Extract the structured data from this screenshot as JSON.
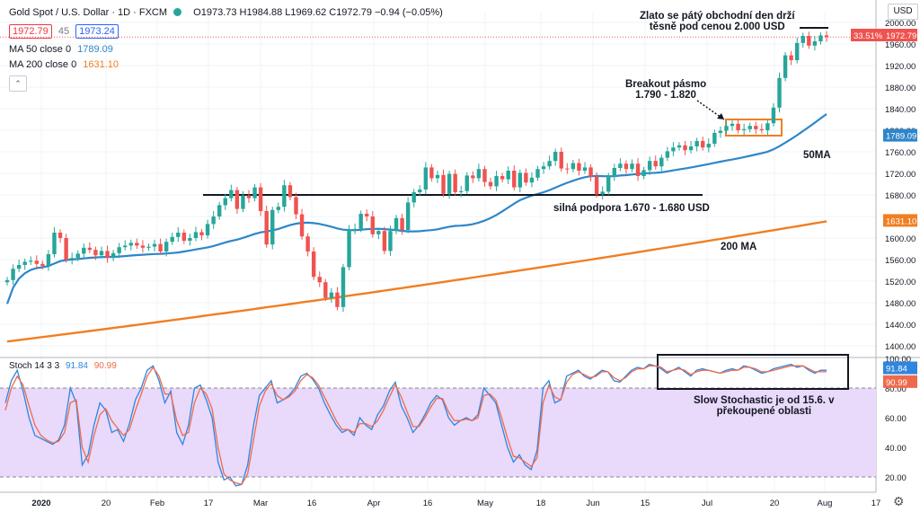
{
  "header": {
    "symbol": "Gold Spot / U.S. Dollar · 1D · FXCM",
    "ohlc": "O1973.73 H1984.88 L1969.62 C1972.79 −0.94 (−0.05%)",
    "sell": "1972.79",
    "spread": "45",
    "buy": "1973.24",
    "ma50_label": "MA 50 close 0",
    "ma50_value": "1789.09",
    "ma200_label": "MA 200 close 0",
    "ma200_value": "1631.10",
    "stoch_label": "Stoch 14 3 3",
    "stoch_k": "91.84",
    "stoch_d": "90.99",
    "currency": "USD"
  },
  "annotations": {
    "top1": "Zlato se pátý obchodní den drží",
    "top2": "těsně pod cenou 2.000 USD",
    "breakout1": "Breakout pásmo",
    "breakout2": "1.790 - 1.820",
    "support": "silná podpora 1.670 - 1.680 USD",
    "ma50": "50MA",
    "ma200": "200 MA",
    "stoch1": "Slow Stochastic je od 15.6. v",
    "stoch2": "překoupené oblasti"
  },
  "colors": {
    "up": "#26a69a",
    "down": "#ef5350",
    "ma50": "#2e86c9",
    "ma200": "#f07e22",
    "stoch_k": "#2e86de",
    "stoch_d": "#ef6a4c",
    "band": "#e9d9fb",
    "breakout_box": "#f07e22"
  },
  "chart_data": [
    {
      "type": "candlestick",
      "title": "Gold Spot / U.S. Dollar · 1D · FXCM",
      "ylim": [
        1380,
        2010
      ],
      "y_ticks": [
        1400,
        1440,
        1480,
        1520,
        1560,
        1600,
        1640,
        1680,
        1720,
        1760,
        1800,
        1840,
        1880,
        1920,
        1960,
        2000
      ],
      "x_ticks": [
        "2020",
        "20",
        "Feb",
        "17",
        "Mar",
        "16",
        "Apr",
        "16",
        "May",
        "18",
        "Jun",
        "15",
        "Jul",
        "20",
        "Aug",
        "17"
      ],
      "price_labels": {
        "percent": "33.51%",
        "last": "1972.79",
        "ma50": "1789.09",
        "ma200": "1631.10"
      },
      "closes": [
        1522,
        1543,
        1550,
        1556,
        1558,
        1552,
        1548,
        1570,
        1610,
        1600,
        1560,
        1563,
        1571,
        1582,
        1578,
        1568,
        1576,
        1563,
        1572,
        1583,
        1586,
        1591,
        1586,
        1582,
        1584,
        1589,
        1575,
        1593,
        1602,
        1610,
        1595,
        1600,
        1611,
        1605,
        1626,
        1640,
        1661,
        1674,
        1689,
        1654,
        1679,
        1674,
        1694,
        1650,
        1588,
        1652,
        1658,
        1698,
        1676,
        1644,
        1603,
        1575,
        1528,
        1518,
        1489,
        1499,
        1472,
        1546,
        1616,
        1617,
        1645,
        1640,
        1607,
        1613,
        1576,
        1613,
        1637,
        1615,
        1666,
        1685,
        1690,
        1731,
        1711,
        1717,
        1682,
        1719,
        1685,
        1687,
        1716,
        1711,
        1728,
        1704,
        1696,
        1715,
        1709,
        1725,
        1694,
        1721,
        1703,
        1712,
        1728,
        1733,
        1743,
        1760,
        1729,
        1728,
        1739,
        1725,
        1731,
        1714,
        1681,
        1686,
        1715,
        1730,
        1738,
        1728,
        1738,
        1715,
        1726,
        1743,
        1733,
        1749,
        1761,
        1768,
        1772,
        1763,
        1770,
        1780,
        1768,
        1775,
        1795,
        1799,
        1808,
        1812,
        1800,
        1802,
        1808,
        1802,
        1800,
        1813,
        1842,
        1897,
        1939,
        1930,
        1962,
        1975,
        1957,
        1965,
        1976,
        1973
      ]
    },
    {
      "type": "line",
      "title": "Stoch 14 3 3",
      "ylim": [
        10,
        100
      ],
      "y_ticks": [
        20,
        40,
        60,
        80,
        100
      ],
      "series": [
        {
          "name": "%K",
          "values": [
            70,
            85,
            92,
            78,
            60,
            48,
            46,
            44,
            42,
            45,
            55,
            80,
            70,
            28,
            35,
            55,
            70,
            65,
            50,
            52,
            44,
            56,
            72,
            80,
            92,
            95,
            85,
            70,
            78,
            50,
            42,
            55,
            80,
            82,
            72,
            60,
            30,
            18,
            20,
            14,
            15,
            28,
            55,
            75,
            80,
            85,
            70,
            72,
            75,
            80,
            88,
            90,
            86,
            80,
            70,
            62,
            55,
            50,
            52,
            48,
            60,
            55,
            52,
            62,
            68,
            78,
            84,
            68,
            60,
            50,
            55,
            62,
            70,
            75,
            72,
            60,
            55,
            58,
            60,
            58,
            62,
            80,
            75,
            70,
            55,
            40,
            30,
            35,
            28,
            25,
            38,
            80,
            85,
            70,
            72,
            88,
            90,
            92,
            88,
            86,
            89,
            92,
            91,
            85,
            84,
            88,
            92,
            94,
            93,
            96,
            95,
            93,
            90,
            92,
            94,
            91,
            88,
            92,
            93,
            92,
            91,
            90,
            92,
            93,
            92,
            95,
            94,
            92,
            90,
            91,
            93,
            94,
            95,
            96,
            94,
            95,
            92,
            90,
            92,
            92
          ]
        },
        {
          "name": "%D",
          "values": [
            65,
            80,
            88,
            82,
            68,
            55,
            48,
            45,
            43,
            44,
            50,
            70,
            72,
            40,
            30,
            48,
            62,
            66,
            58,
            53,
            48,
            52,
            65,
            76,
            88,
            94,
            88,
            76,
            76,
            58,
            48,
            50,
            70,
            80,
            76,
            66,
            40,
            22,
            18,
            16,
            15,
            22,
            45,
            68,
            78,
            83,
            75,
            72,
            74,
            78,
            85,
            89,
            87,
            82,
            74,
            66,
            58,
            52,
            52,
            50,
            56,
            56,
            54,
            58,
            65,
            74,
            82,
            74,
            64,
            54,
            54,
            60,
            67,
            73,
            73,
            64,
            58,
            58,
            59,
            58,
            60,
            75,
            76,
            72,
            60,
            46,
            34,
            33,
            30,
            27,
            33,
            70,
            82,
            74,
            72,
            84,
            89,
            91,
            89,
            87,
            88,
            91,
            91,
            87,
            85,
            87,
            91,
            93,
            93,
            95,
            95,
            94,
            91,
            92,
            93,
            92,
            89,
            91,
            92,
            92,
            91,
            90,
            91,
            92,
            92,
            94,
            94,
            93,
            91,
            91,
            92,
            93,
            94,
            95,
            95,
            95,
            93,
            91,
            91,
            91
          ]
        }
      ]
    }
  ]
}
